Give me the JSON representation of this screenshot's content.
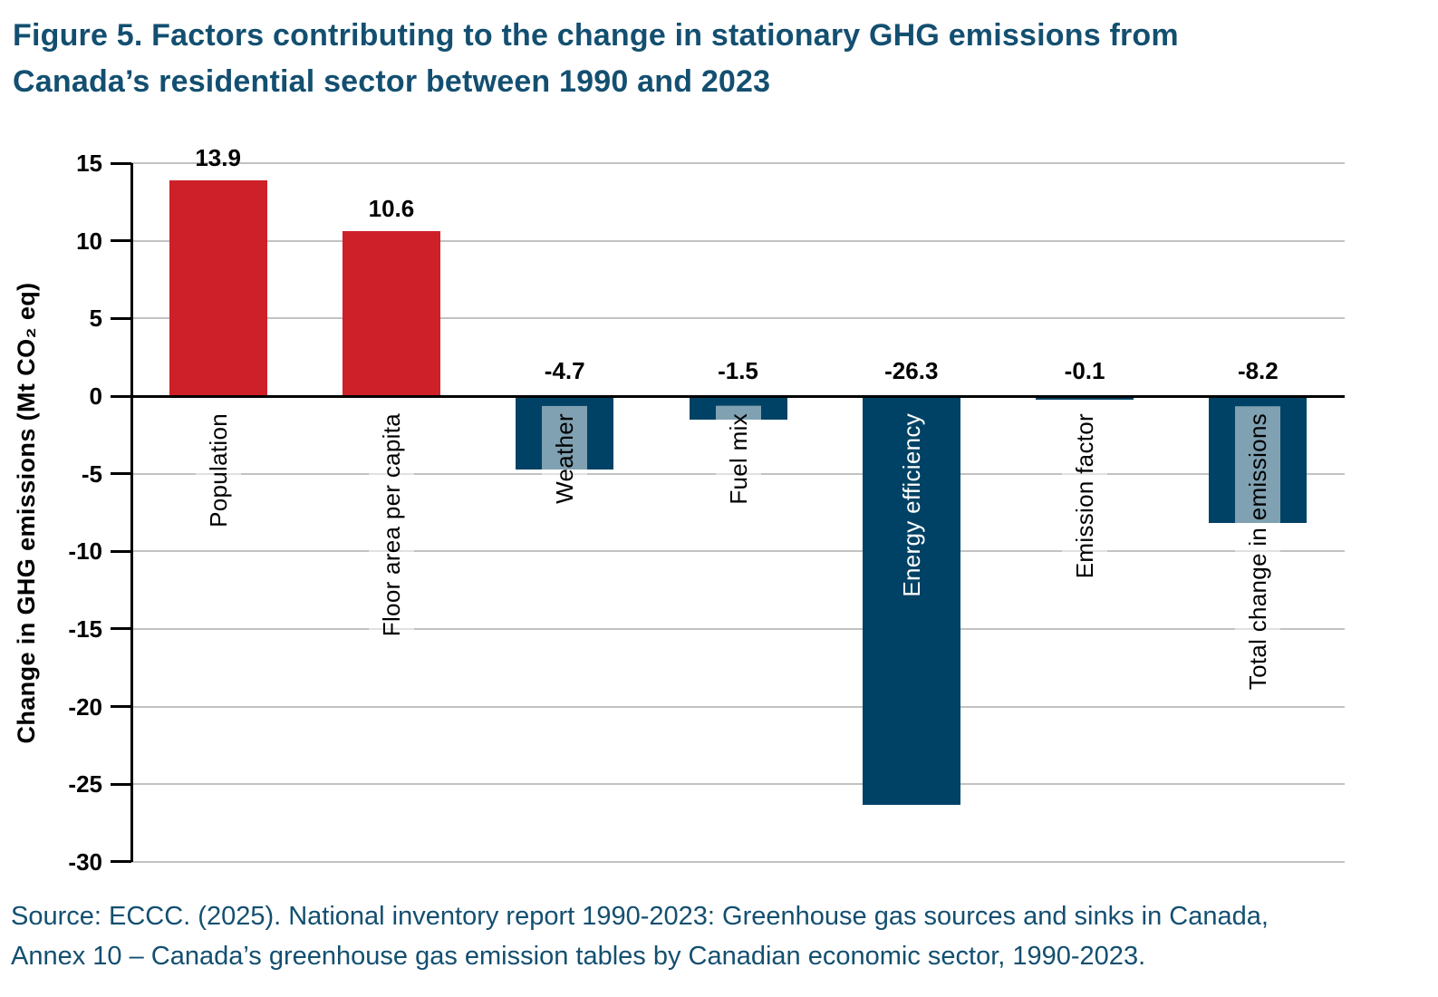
{
  "figure": {
    "title": "Figure 5. Factors contributing to the change in stationary GHG emissions from\nCanada’s residential sector between 1990 and 2023",
    "source": "Source: ECCC. (2025). National inventory report 1990-2023: Greenhouse gas sources and sinks in Canada,\nAnnex 10 – Canada’s greenhouse gas emission tables by Canadian economic sector, 1990-2023."
  },
  "chart_data": {
    "type": "bar",
    "title": "Factors contributing to the change in stationary GHG emissions from Canada’s residential sector between 1990 and 2023",
    "xlabel": "",
    "ylabel": "Change in GHG emissions (Mt CO₂ eq)",
    "ylim": [
      -30,
      15
    ],
    "tick_step": 5,
    "grid": true,
    "legend": false,
    "categories": [
      "Population",
      "Floor area per capita",
      "Weather",
      "Fuel mix",
      "Energy efficiency",
      "Emission factor",
      "Total change in emissions"
    ],
    "values": [
      13.9,
      10.6,
      -4.7,
      -1.5,
      -26.3,
      -0.1,
      -8.2
    ],
    "value_labels": [
      "13.9",
      "10.6",
      "-4.7",
      "-1.5",
      "-26.3",
      "-0.1",
      "-8.2"
    ],
    "category_label_styles": [
      "overlay-black",
      "overlay-black",
      "overlay-black",
      "overlay-black",
      "inside-white",
      "overlay-black",
      "overlay-black"
    ],
    "colors": {
      "positive_bar": "#CE2029",
      "negative_bar": "#004265",
      "category_label_text": "#000000",
      "category_label_text_inside": "#FFFFFF",
      "category_label_bg": "rgba(255,255,255,0.5)",
      "gridline": "#C2C2C2",
      "axis": "#000000",
      "value_label_text": "#000000",
      "heading_text": "#134F70"
    }
  }
}
